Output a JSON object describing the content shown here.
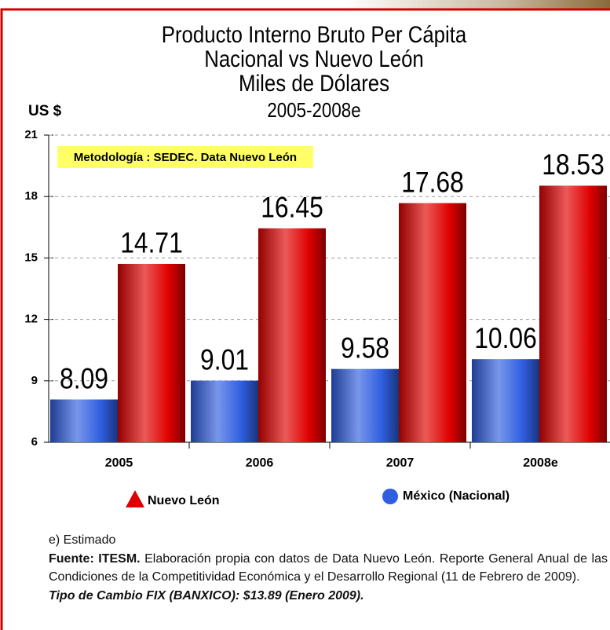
{
  "chart_data": {
    "type": "bar",
    "title": [
      "Producto Interno Bruto Per Cápita",
      "Nacional vs Nuevo León",
      "Miles de Dólares"
    ],
    "subtitle": "2005-2008e",
    "ylabel": "US $",
    "note_box": "Metodología : SEDEC. Data Nuevo León",
    "categories": [
      "2005",
      "2006",
      "2007",
      "2008e"
    ],
    "series": [
      {
        "name": "México (Nacional)",
        "color": "#2f5ee0",
        "marker": "circle",
        "values": [
          8.09,
          9.01,
          9.58,
          10.06
        ]
      },
      {
        "name": "Nuevo León",
        "color": "#e00000",
        "marker": "triangle",
        "values": [
          14.71,
          16.45,
          17.68,
          18.53
        ]
      }
    ],
    "ylim": [
      6,
      21
    ],
    "yticks": [
      6,
      9,
      12,
      15,
      18,
      21
    ],
    "grid": true,
    "footnotes": {
      "estimate": "e) Estimado",
      "source_label": "Fuente: ITESM.",
      "source_text": "Elaboración propia con datos de Data Nuevo León. Reporte General Anual de las Condiciones de la Competitividad Económica y el Desarrollo Regional (11 de Febrero de 2009).",
      "exchange": "Tipo de Cambio FIX (BANXICO): $13.89 (Enero 2009)."
    }
  }
}
